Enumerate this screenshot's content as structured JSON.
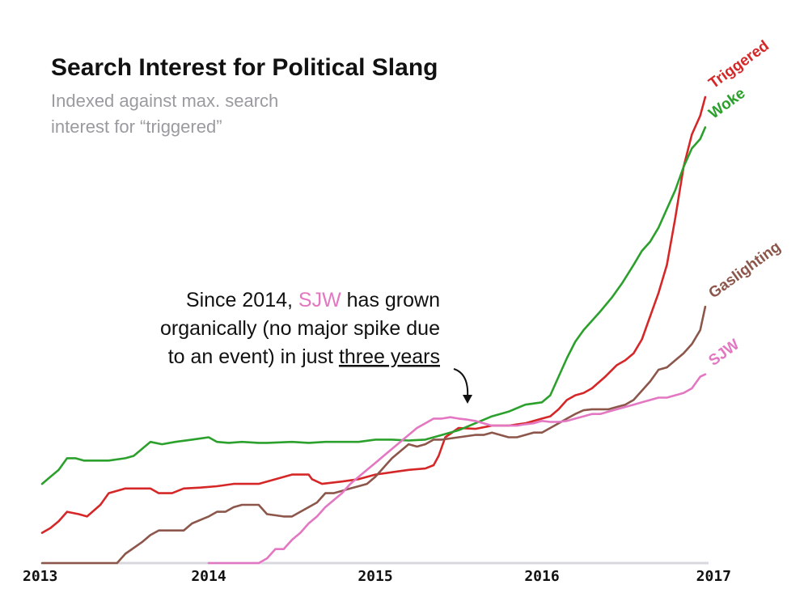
{
  "chart_data": {
    "type": "line",
    "title": "Search Interest for Political Slang",
    "subtitle_lines": [
      "Indexed against max. search",
      "interest for “triggered”"
    ],
    "xlabel": "",
    "ylabel": "",
    "xlim": [
      2013.0,
      2017.0
    ],
    "ylim": [
      0,
      100
    ],
    "x_ticks": [
      "2013",
      "2014",
      "2015",
      "2016",
      "2017"
    ],
    "grid": false,
    "legend": "none (direct labels at line ends)",
    "annotation": {
      "line1_a": "Since 2014, ",
      "line1_sjw": "SJW",
      "line1_b": " has grown",
      "line2": "organically (no major spike due",
      "line3_a": "to an event) in just ",
      "line3_u": "three years"
    },
    "series": [
      {
        "name": "Triggered",
        "color": "#d62728",
        "points": [
          [
            2013.0,
            6.5
          ],
          [
            2013.05,
            7.5
          ],
          [
            2013.1,
            9
          ],
          [
            2013.15,
            11
          ],
          [
            2013.22,
            10.5
          ],
          [
            2013.27,
            10
          ],
          [
            2013.35,
            12.5
          ],
          [
            2013.4,
            15
          ],
          [
            2013.5,
            16
          ],
          [
            2013.55,
            16
          ],
          [
            2013.65,
            16
          ],
          [
            2013.7,
            15
          ],
          [
            2013.78,
            15
          ],
          [
            2013.85,
            16
          ],
          [
            2013.95,
            16.2
          ],
          [
            2014.05,
            16.5
          ],
          [
            2014.15,
            17
          ],
          [
            2014.25,
            17
          ],
          [
            2014.3,
            17
          ],
          [
            2014.35,
            17.5
          ],
          [
            2014.5,
            19
          ],
          [
            2014.55,
            19
          ],
          [
            2014.6,
            19
          ],
          [
            2014.62,
            18
          ],
          [
            2014.68,
            17
          ],
          [
            2014.8,
            17.5
          ],
          [
            2014.9,
            18
          ],
          [
            2015.0,
            19
          ],
          [
            2015.1,
            19.5
          ],
          [
            2015.2,
            20
          ],
          [
            2015.3,
            20.3
          ],
          [
            2015.35,
            21
          ],
          [
            2015.38,
            23
          ],
          [
            2015.42,
            27
          ],
          [
            2015.5,
            29
          ],
          [
            2015.6,
            28.8
          ],
          [
            2015.7,
            29.5
          ],
          [
            2015.75,
            29.5
          ],
          [
            2015.8,
            29.5
          ],
          [
            2015.9,
            30
          ],
          [
            2016.0,
            31
          ],
          [
            2016.05,
            31.5
          ],
          [
            2016.1,
            33
          ],
          [
            2016.15,
            35
          ],
          [
            2016.2,
            36
          ],
          [
            2016.25,
            36.5
          ],
          [
            2016.3,
            37.5
          ],
          [
            2016.38,
            40
          ],
          [
            2016.45,
            42.5
          ],
          [
            2016.5,
            43.5
          ],
          [
            2016.55,
            45
          ],
          [
            2016.6,
            48
          ],
          [
            2016.65,
            53
          ],
          [
            2016.7,
            58
          ],
          [
            2016.75,
            64
          ],
          [
            2016.8,
            74
          ],
          [
            2016.85,
            85
          ],
          [
            2016.9,
            92
          ],
          [
            2016.95,
            96
          ],
          [
            2016.98,
            100
          ]
        ]
      },
      {
        "name": "Woke",
        "color": "#2ca02c",
        "points": [
          [
            2013.0,
            17
          ],
          [
            2013.05,
            18.5
          ],
          [
            2013.1,
            20
          ],
          [
            2013.15,
            22.5
          ],
          [
            2013.2,
            22.5
          ],
          [
            2013.25,
            22
          ],
          [
            2013.3,
            22
          ],
          [
            2013.4,
            22
          ],
          [
            2013.5,
            22.5
          ],
          [
            2013.55,
            23
          ],
          [
            2013.65,
            26
          ],
          [
            2013.72,
            25.5
          ],
          [
            2013.8,
            26
          ],
          [
            2013.9,
            26.5
          ],
          [
            2014.0,
            27
          ],
          [
            2014.05,
            26
          ],
          [
            2014.12,
            25.8
          ],
          [
            2014.2,
            26
          ],
          [
            2014.3,
            25.8
          ],
          [
            2014.35,
            25.8
          ],
          [
            2014.5,
            26
          ],
          [
            2014.6,
            25.8
          ],
          [
            2014.7,
            26
          ],
          [
            2014.8,
            26
          ],
          [
            2014.9,
            26
          ],
          [
            2015.0,
            26.5
          ],
          [
            2015.1,
            26.5
          ],
          [
            2015.2,
            26.3
          ],
          [
            2015.3,
            26.5
          ],
          [
            2015.4,
            27.5
          ],
          [
            2015.5,
            28.5
          ],
          [
            2015.6,
            30
          ],
          [
            2015.7,
            31.5
          ],
          [
            2015.8,
            32.5
          ],
          [
            2015.9,
            34
          ],
          [
            2016.0,
            34.5
          ],
          [
            2016.05,
            36
          ],
          [
            2016.1,
            40
          ],
          [
            2016.15,
            44
          ],
          [
            2016.2,
            47.5
          ],
          [
            2016.25,
            50
          ],
          [
            2016.3,
            52
          ],
          [
            2016.35,
            54
          ],
          [
            2016.42,
            57
          ],
          [
            2016.48,
            60
          ],
          [
            2016.55,
            64
          ],
          [
            2016.6,
            67
          ],
          [
            2016.65,
            69
          ],
          [
            2016.7,
            72
          ],
          [
            2016.75,
            76
          ],
          [
            2016.8,
            80
          ],
          [
            2016.85,
            85
          ],
          [
            2016.9,
            89
          ],
          [
            2016.95,
            91
          ],
          [
            2016.98,
            93.5
          ]
        ]
      },
      {
        "name": "Gaslighting",
        "color": "#8c564b",
        "points": [
          [
            2013.0,
            0
          ],
          [
            2013.2,
            0
          ],
          [
            2013.4,
            0
          ],
          [
            2013.45,
            0
          ],
          [
            2013.5,
            2
          ],
          [
            2013.6,
            4.5
          ],
          [
            2013.65,
            6
          ],
          [
            2013.7,
            7
          ],
          [
            2013.8,
            7
          ],
          [
            2013.85,
            7
          ],
          [
            2013.9,
            8.5
          ],
          [
            2014.0,
            10
          ],
          [
            2014.05,
            11
          ],
          [
            2014.1,
            11
          ],
          [
            2014.15,
            12
          ],
          [
            2014.2,
            12.5
          ],
          [
            2014.25,
            12.5
          ],
          [
            2014.3,
            12.5
          ],
          [
            2014.35,
            10.5
          ],
          [
            2014.45,
            10
          ],
          [
            2014.5,
            10
          ],
          [
            2014.55,
            11
          ],
          [
            2014.6,
            12
          ],
          [
            2014.65,
            13
          ],
          [
            2014.7,
            15
          ],
          [
            2014.75,
            15
          ],
          [
            2014.8,
            15.5
          ],
          [
            2014.85,
            16
          ],
          [
            2014.9,
            16.5
          ],
          [
            2014.95,
            17
          ],
          [
            2015.0,
            18.5
          ],
          [
            2015.05,
            20.5
          ],
          [
            2015.1,
            22.5
          ],
          [
            2015.15,
            24
          ],
          [
            2015.2,
            25.5
          ],
          [
            2015.25,
            25
          ],
          [
            2015.3,
            25.5
          ],
          [
            2015.35,
            26.5
          ],
          [
            2015.4,
            26.5
          ],
          [
            2015.5,
            27
          ],
          [
            2015.6,
            27.5
          ],
          [
            2015.65,
            27.5
          ],
          [
            2015.7,
            28
          ],
          [
            2015.8,
            27
          ],
          [
            2015.85,
            27
          ],
          [
            2015.9,
            27.5
          ],
          [
            2015.95,
            28
          ],
          [
            2016.0,
            28
          ],
          [
            2016.05,
            29
          ],
          [
            2016.1,
            30
          ],
          [
            2016.15,
            31
          ],
          [
            2016.2,
            32
          ],
          [
            2016.25,
            32.8
          ],
          [
            2016.3,
            33
          ],
          [
            2016.35,
            33
          ],
          [
            2016.4,
            33
          ],
          [
            2016.45,
            33.5
          ],
          [
            2016.5,
            34
          ],
          [
            2016.55,
            35
          ],
          [
            2016.6,
            37
          ],
          [
            2016.65,
            39
          ],
          [
            2016.7,
            41.5
          ],
          [
            2016.75,
            42
          ],
          [
            2016.8,
            43.5
          ],
          [
            2016.85,
            45
          ],
          [
            2016.9,
            47
          ],
          [
            2016.95,
            50
          ],
          [
            2016.98,
            55
          ]
        ]
      },
      {
        "name": "SJW",
        "color": "#e377c2",
        "points": [
          [
            2014.0,
            0
          ],
          [
            2014.1,
            0
          ],
          [
            2014.2,
            0
          ],
          [
            2014.3,
            0
          ],
          [
            2014.35,
            1
          ],
          [
            2014.4,
            3
          ],
          [
            2014.45,
            3
          ],
          [
            2014.5,
            5
          ],
          [
            2014.55,
            6.5
          ],
          [
            2014.6,
            8.5
          ],
          [
            2014.65,
            10
          ],
          [
            2014.7,
            12
          ],
          [
            2014.75,
            13.5
          ],
          [
            2014.8,
            15
          ],
          [
            2014.85,
            17
          ],
          [
            2014.9,
            18.5
          ],
          [
            2014.95,
            20
          ],
          [
            2015.0,
            21.5
          ],
          [
            2015.05,
            23
          ],
          [
            2015.1,
            24.5
          ],
          [
            2015.15,
            26
          ],
          [
            2015.2,
            27.5
          ],
          [
            2015.25,
            29
          ],
          [
            2015.3,
            30
          ],
          [
            2015.35,
            31
          ],
          [
            2015.4,
            31
          ],
          [
            2015.45,
            31.3
          ],
          [
            2015.5,
            31
          ],
          [
            2015.55,
            30.8
          ],
          [
            2015.6,
            30.5
          ],
          [
            2015.65,
            30
          ],
          [
            2015.7,
            29.5
          ],
          [
            2015.75,
            29.5
          ],
          [
            2015.8,
            29.5
          ],
          [
            2015.85,
            29.5
          ],
          [
            2015.9,
            29.8
          ],
          [
            2015.95,
            30
          ],
          [
            2016.0,
            30.5
          ],
          [
            2016.05,
            30.3
          ],
          [
            2016.1,
            30.3
          ],
          [
            2016.15,
            30.5
          ],
          [
            2016.2,
            31
          ],
          [
            2016.25,
            31.5
          ],
          [
            2016.3,
            32
          ],
          [
            2016.35,
            32
          ],
          [
            2016.4,
            32.5
          ],
          [
            2016.45,
            33
          ],
          [
            2016.5,
            33.5
          ],
          [
            2016.55,
            34
          ],
          [
            2016.6,
            34.5
          ],
          [
            2016.65,
            35
          ],
          [
            2016.7,
            35.5
          ],
          [
            2016.75,
            35.5
          ],
          [
            2016.8,
            36
          ],
          [
            2016.85,
            36.5
          ],
          [
            2016.9,
            37.5
          ],
          [
            2016.95,
            40
          ],
          [
            2016.98,
            40.5
          ]
        ]
      }
    ]
  }
}
